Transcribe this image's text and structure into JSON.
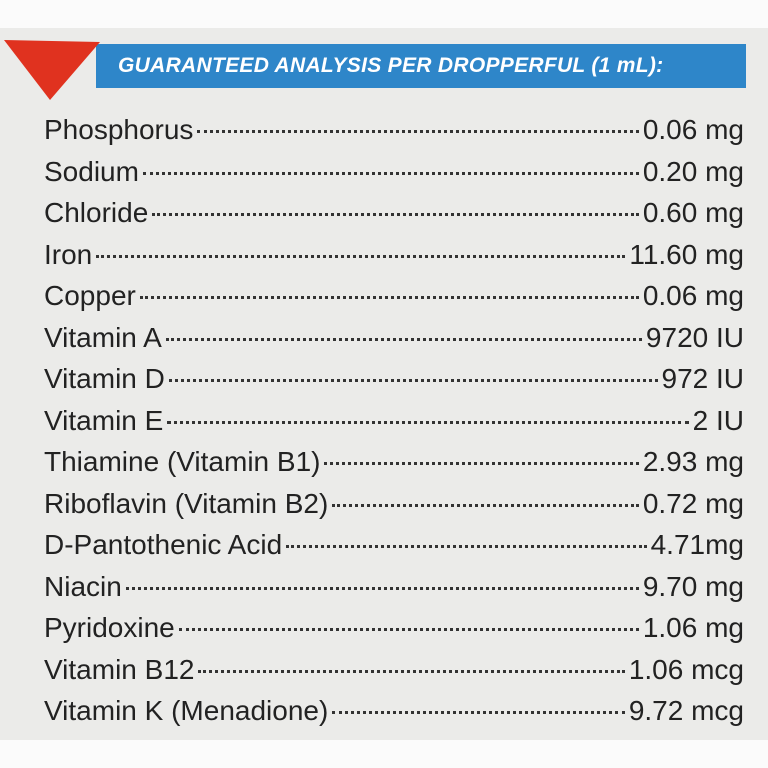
{
  "header": {
    "title": "GUARANTEED ANALYSIS PER DROPPERFUL (1 mL):"
  },
  "rows": [
    {
      "name": "Phosphorus",
      "amount": "0.06 mg"
    },
    {
      "name": "Sodium",
      "amount": "0.20 mg"
    },
    {
      "name": "Chloride",
      "amount": "0.60 mg"
    },
    {
      "name": "Iron",
      "amount": "11.60 mg"
    },
    {
      "name": "Copper",
      "amount": "0.06 mg"
    },
    {
      "name": "Vitamin A",
      "amount": "9720 IU"
    },
    {
      "name": "Vitamin D",
      "amount": "972 IU"
    },
    {
      "name": "Vitamin E",
      "amount": "2 IU"
    },
    {
      "name": "Thiamine (Vitamin B1)",
      "amount": "2.93 mg"
    },
    {
      "name": "Riboflavin (Vitamin B2)",
      "amount": "0.72 mg"
    },
    {
      "name": "D-Pantothenic Acid",
      "amount": "4.71mg"
    },
    {
      "name": "Niacin",
      "amount": "9.70 mg"
    },
    {
      "name": "Pyridoxine",
      "amount": "1.06 mg"
    },
    {
      "name": "Vitamin B12",
      "amount": "1.06 mcg"
    },
    {
      "name": "Vitamin K (Menadione)",
      "amount": "9.72 mcg"
    }
  ]
}
